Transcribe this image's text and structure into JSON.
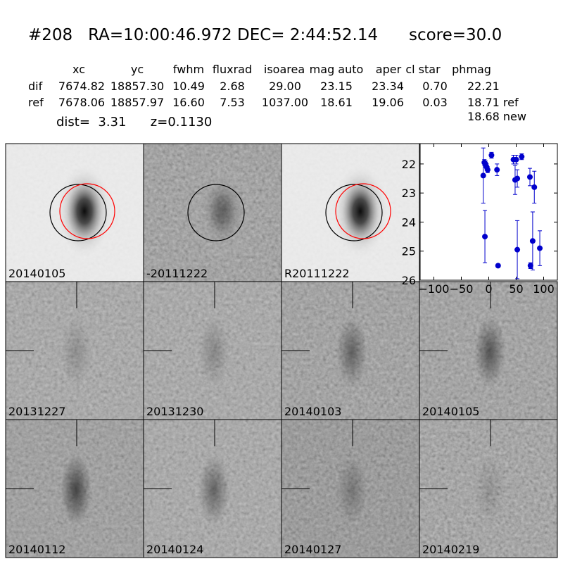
{
  "header": {
    "title": "#208   RA=10:00:46.972 DEC= 2:44:52.14      score=30.0"
  },
  "table": {
    "columns": [
      "xc",
      "yc",
      "fwhm",
      "fluxrad",
      "isoarea",
      "mag auto",
      "aper",
      "cl star",
      "phmag"
    ],
    "rows": [
      [
        "dif",
        "7674.82",
        "18857.30",
        "10.49",
        "2.68",
        "29.00",
        "23.15",
        "23.34",
        "0.70",
        "22.21"
      ],
      [
        "ref",
        "7678.06",
        "18857.97",
        "16.60",
        "7.53",
        "1037.00",
        "18.61",
        "19.06",
        "0.03",
        "18.71 ref"
      ]
    ],
    "extra": "18.68 new"
  },
  "info": "dist=  3.31      z=0.1130",
  "stamps": [
    "20140105",
    "-20111222",
    "R20111222",
    "20131227",
    "20131230",
    "20140103",
    "20140105",
    "20140112",
    "20140124",
    "20140127",
    "20140219"
  ],
  "highlight_stamp": 6,
  "highlight_color": "#ff0000",
  "chart_data": {
    "type": "scatter",
    "color": "#0000cc",
    "x": [
      -10,
      -8,
      -6,
      -4,
      -2,
      -7,
      5,
      15,
      17,
      45,
      48,
      50,
      52,
      52,
      60,
      75,
      76,
      80,
      83,
      93
    ],
    "values": [
      22.4,
      21.95,
      22.0,
      22.1,
      22.2,
      24.5,
      21.7,
      22.2,
      25.5,
      21.85,
      22.55,
      21.85,
      22.5,
      24.95,
      21.75,
      22.45,
      25.5,
      24.65,
      22.8,
      24.9
    ],
    "errors": [
      0.95,
      0.1,
      0.1,
      0.1,
      0.1,
      0.9,
      0.1,
      0.2,
      0.05,
      0.15,
      0.5,
      0.15,
      0.3,
      1.0,
      0.1,
      0.3,
      0.1,
      1.0,
      0.55,
      0.6
    ],
    "xlim": [
      -125,
      125
    ],
    "xticks": [
      {
        "value": -100,
        "label": "−100"
      },
      {
        "value": -50,
        "label": "−50"
      },
      0,
      50,
      100
    ],
    "ylim": [
      26,
      21.3
    ],
    "yticks": [
      22,
      23,
      24,
      25,
      26
    ]
  }
}
